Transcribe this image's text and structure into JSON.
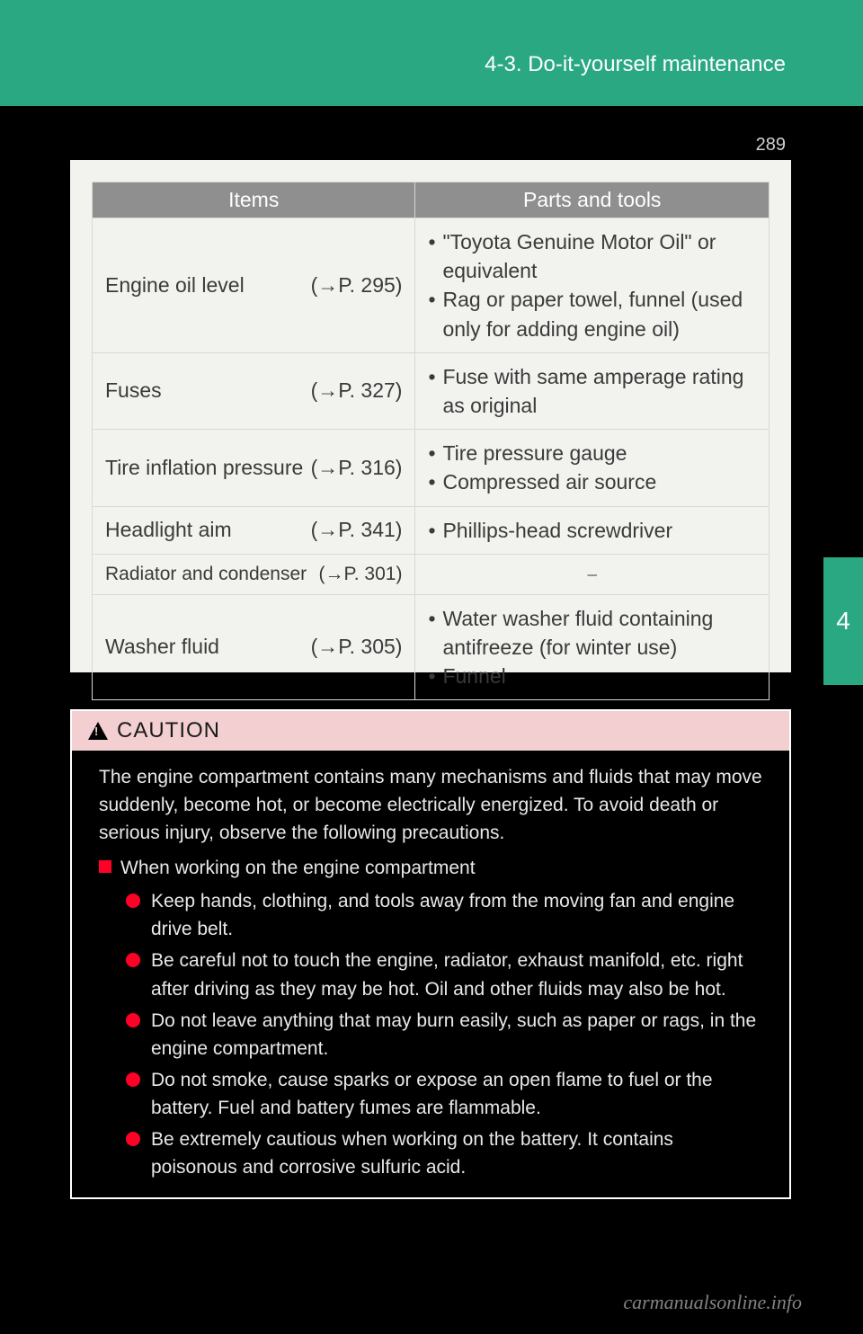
{
  "page_number": "289",
  "header": {
    "section_title": "4-3. Do-it-yourself maintenance"
  },
  "side_tab": {
    "label": "4",
    "bg_color": "#2aa881"
  },
  "table": {
    "headers": {
      "items": "Items",
      "parts": "Parts and tools"
    },
    "rows": [
      {
        "item": "Engine oil level",
        "ref": "(→P. 295)",
        "tools": [
          "\"Toyota Genuine Motor Oil\" or equivalent",
          "Rag or paper towel, funnel (used only for adding engine oil)"
        ]
      },
      {
        "item": "Fuses",
        "ref": "(→P. 327)",
        "tools": [
          "Fuse with same amperage rating as original"
        ]
      },
      {
        "item": "Tire inflation pressure",
        "ref": "(→P. 316)",
        "tools": [
          "Tire pressure gauge",
          "Compressed air source"
        ]
      },
      {
        "item": "Headlight aim",
        "ref": "(→P. 341)",
        "tools": [
          "Phillips-head screwdriver"
        ]
      },
      {
        "item": "Radiator and condenser",
        "ref": "(→P. 301)",
        "tools_dash": "⎯",
        "small": true
      },
      {
        "item": "Washer fluid",
        "ref": "(→P. 305)",
        "tools": [
          "Water washer fluid containing antifreeze (for winter use)",
          "Funnel"
        ]
      }
    ]
  },
  "caution": {
    "title": "CAUTION",
    "intro1": "The engine compartment contains many mechanisms and fluids that may move suddenly, become hot, or become electrically energized. To avoid death or serious injury, observe the following precautions.",
    "section_title": "When working on the engine compartment",
    "bullets": [
      "Keep hands, clothing, and tools away from the moving fan and engine drive belt.",
      "Be careful not to touch the engine, radiator, exhaust manifold, etc. right after driving as they may be hot. Oil and other fluids may also be hot.",
      "Do not leave anything that may burn easily, such as paper or rags, in the engine compartment.",
      "Do not smoke, cause sparks or expose an open flame to fuel or the battery. Fuel and battery fumes are flammable.",
      "Be extremely cautious when working on the battery. It contains poisonous and corrosive sulfuric acid."
    ]
  },
  "watermark": "carmanualsonline.info",
  "colors": {
    "brand_green": "#2aa881",
    "panel_bg": "#f2f2ef",
    "th_bg": "#8f8f8f",
    "bullet_red": "#ff0026",
    "caution_head_bg": "#f3cfd1"
  }
}
